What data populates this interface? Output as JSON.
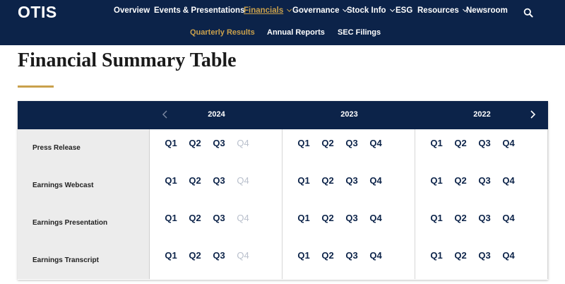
{
  "header": {
    "logo": "OTIS",
    "nav": [
      {
        "label": "Overview",
        "active": false,
        "dropdown": false
      },
      {
        "label": "Events & Presentations",
        "active": false,
        "dropdown": false
      },
      {
        "label": "Financials",
        "active": true,
        "dropdown": true
      },
      {
        "label": "Governance",
        "active": false,
        "dropdown": true
      },
      {
        "label": "Stock Info",
        "active": false,
        "dropdown": true
      },
      {
        "label": "ESG",
        "active": false,
        "dropdown": false
      },
      {
        "label": "Resources",
        "active": false,
        "dropdown": true
      },
      {
        "label": "Newsroom",
        "active": false,
        "dropdown": false
      }
    ],
    "search_icon": "search-icon",
    "subnav": [
      {
        "label": "Quarterly Results",
        "active": true
      },
      {
        "label": "Annual Reports",
        "active": false
      },
      {
        "label": "SEC Filings",
        "active": false
      }
    ]
  },
  "page": {
    "title": "Financial Summary Table"
  },
  "table": {
    "years": [
      "2024",
      "2023",
      "2022"
    ],
    "prev_icon": "chevron-left-icon",
    "next_icon": "chevron-right-icon",
    "rows": [
      {
        "label": "Press Release",
        "quarters": [
          [
            {
              "q": "Q1",
              "available": true
            },
            {
              "q": "Q2",
              "available": true
            },
            {
              "q": "Q3",
              "available": true
            },
            {
              "q": "Q4",
              "available": false
            }
          ],
          [
            {
              "q": "Q1",
              "available": true
            },
            {
              "q": "Q2",
              "available": true
            },
            {
              "q": "Q3",
              "available": true
            },
            {
              "q": "Q4",
              "available": true
            }
          ],
          [
            {
              "q": "Q1",
              "available": true
            },
            {
              "q": "Q2",
              "available": true
            },
            {
              "q": "Q3",
              "available": true
            },
            {
              "q": "Q4",
              "available": true
            }
          ]
        ]
      },
      {
        "label": "Earnings Webcast",
        "quarters": [
          [
            {
              "q": "Q1",
              "available": true
            },
            {
              "q": "Q2",
              "available": true
            },
            {
              "q": "Q3",
              "available": true
            },
            {
              "q": "Q4",
              "available": false
            }
          ],
          [
            {
              "q": "Q1",
              "available": true
            },
            {
              "q": "Q2",
              "available": true
            },
            {
              "q": "Q3",
              "available": true
            },
            {
              "q": "Q4",
              "available": true
            }
          ],
          [
            {
              "q": "Q1",
              "available": true
            },
            {
              "q": "Q2",
              "available": true
            },
            {
              "q": "Q3",
              "available": true
            },
            {
              "q": "Q4",
              "available": true
            }
          ]
        ]
      },
      {
        "label": "Earnings Presentation",
        "quarters": [
          [
            {
              "q": "Q1",
              "available": true
            },
            {
              "q": "Q2",
              "available": true
            },
            {
              "q": "Q3",
              "available": true
            },
            {
              "q": "Q4",
              "available": false
            }
          ],
          [
            {
              "q": "Q1",
              "available": true
            },
            {
              "q": "Q2",
              "available": true
            },
            {
              "q": "Q3",
              "available": true
            },
            {
              "q": "Q4",
              "available": true
            }
          ],
          [
            {
              "q": "Q1",
              "available": true
            },
            {
              "q": "Q2",
              "available": true
            },
            {
              "q": "Q3",
              "available": true
            },
            {
              "q": "Q4",
              "available": true
            }
          ]
        ]
      },
      {
        "label": "Earnings Transcript",
        "quarters": [
          [
            {
              "q": "Q1",
              "available": true
            },
            {
              "q": "Q2",
              "available": true
            },
            {
              "q": "Q3",
              "available": true
            },
            {
              "q": "Q4",
              "available": false
            }
          ],
          [
            {
              "q": "Q1",
              "available": true
            },
            {
              "q": "Q2",
              "available": true
            },
            {
              "q": "Q3",
              "available": true
            },
            {
              "q": "Q4",
              "available": true
            }
          ],
          [
            {
              "q": "Q1",
              "available": true
            },
            {
              "q": "Q2",
              "available": true
            },
            {
              "q": "Q3",
              "available": true
            },
            {
              "q": "Q4",
              "available": true
            }
          ]
        ]
      }
    ]
  },
  "colors": {
    "navy": "#0c2349",
    "gold": "#c9a04c",
    "disabled": "#b9c0cc",
    "label_bg": "#ececec"
  }
}
